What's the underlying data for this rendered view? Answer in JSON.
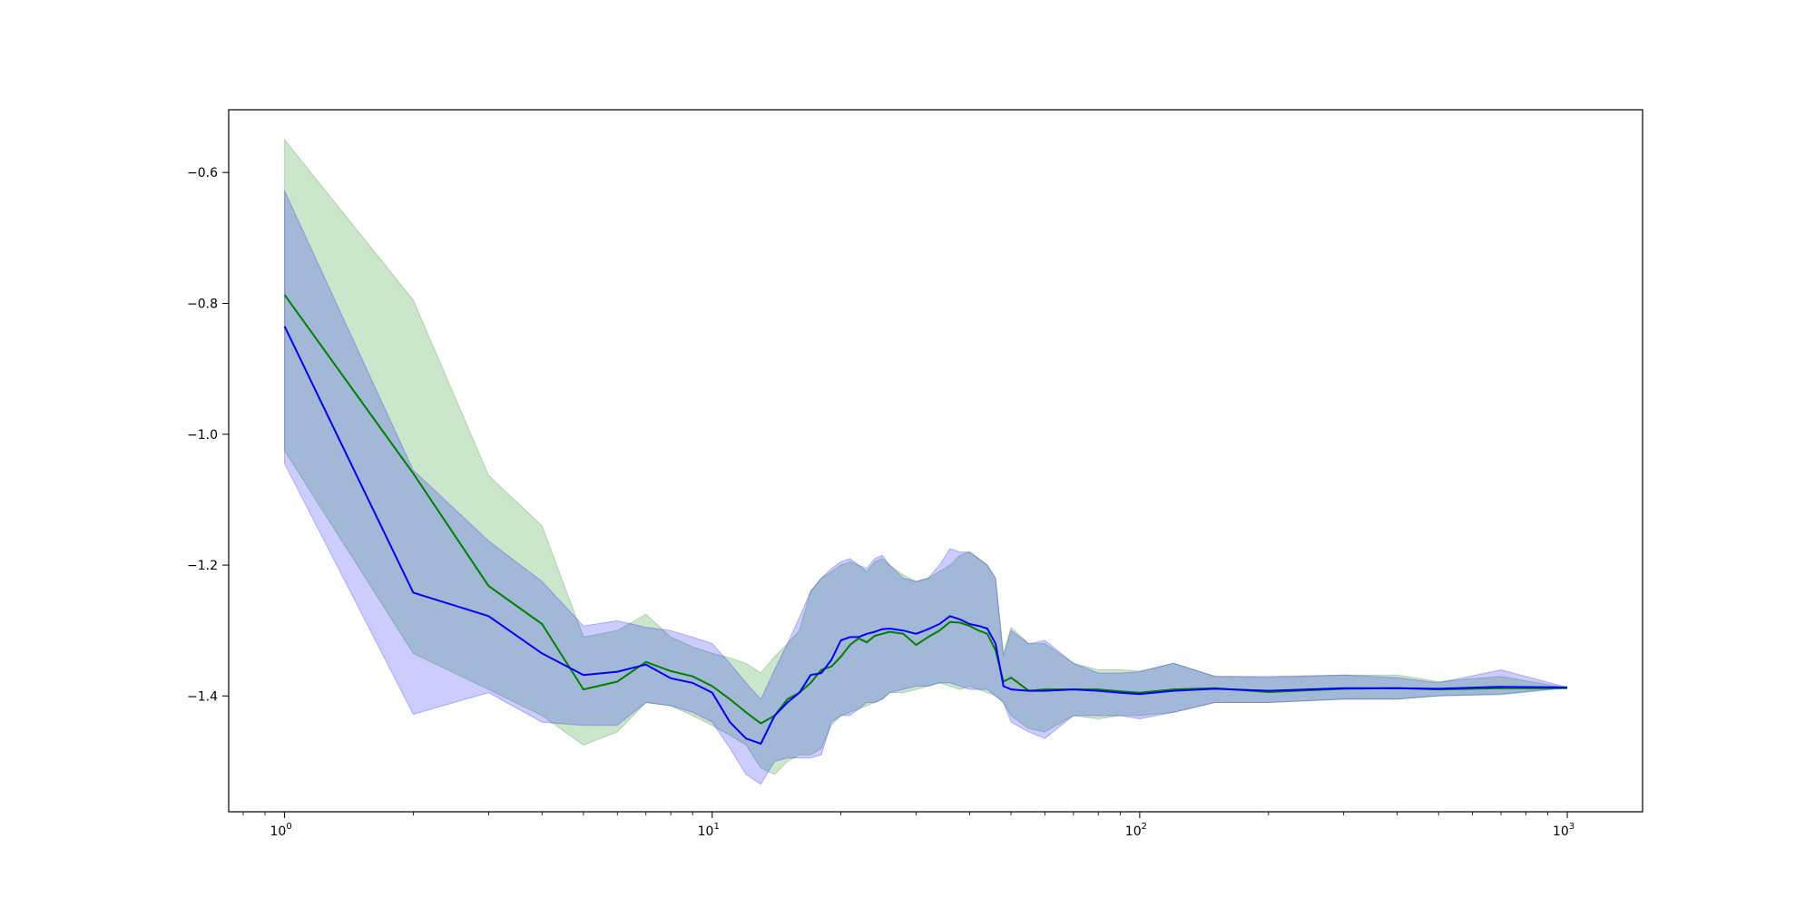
{
  "chart_data": {
    "type": "line",
    "title": "",
    "xlabel": "",
    "ylabel": "",
    "x_scale": "log",
    "xlim": [
      0.74,
      1500
    ],
    "ylim": [
      -1.577,
      -0.504
    ],
    "legend": "none",
    "grid": false,
    "x_ticks": [
      {
        "value": 1,
        "base": "10",
        "exp": "0"
      },
      {
        "value": 10,
        "base": "10",
        "exp": "1"
      },
      {
        "value": 100,
        "base": "10",
        "exp": "2"
      },
      {
        "value": 1000,
        "base": "10",
        "exp": "3"
      }
    ],
    "y_ticks": [
      {
        "value": -0.6,
        "label": "−0.6"
      },
      {
        "value": -0.8,
        "label": "−0.8"
      },
      {
        "value": -1.0,
        "label": "−1.0"
      },
      {
        "value": -1.2,
        "label": "−1.2"
      },
      {
        "value": -1.4,
        "label": "−1.4"
      }
    ],
    "series": [
      {
        "color": "#008000",
        "band_color": "#008000",
        "band_opacity": 0.2,
        "x": [
          1,
          2,
          3,
          4,
          5,
          6,
          7,
          8,
          9,
          10,
          11,
          12,
          13,
          14,
          15,
          16,
          17,
          18,
          19,
          20,
          21,
          22,
          23,
          24,
          25,
          26,
          28,
          30,
          32,
          34,
          36,
          38,
          40,
          42,
          44,
          46,
          48,
          50,
          55,
          60,
          70,
          80,
          90,
          100,
          120,
          150,
          200,
          300,
          400,
          500,
          700,
          1000
        ],
        "y": [
          -0.787,
          -1.06,
          -1.232,
          -1.29,
          -1.39,
          -1.378,
          -1.348,
          -1.362,
          -1.37,
          -1.385,
          -1.405,
          -1.425,
          -1.442,
          -1.43,
          -1.405,
          -1.395,
          -1.38,
          -1.36,
          -1.355,
          -1.34,
          -1.322,
          -1.312,
          -1.318,
          -1.308,
          -1.305,
          -1.302,
          -1.305,
          -1.322,
          -1.31,
          -1.3,
          -1.287,
          -1.288,
          -1.293,
          -1.3,
          -1.305,
          -1.33,
          -1.378,
          -1.372,
          -1.392,
          -1.39,
          -1.39,
          -1.39,
          -1.393,
          -1.395,
          -1.39,
          -1.388,
          -1.394,
          -1.389,
          -1.388,
          -1.39,
          -1.388,
          -1.388
        ],
        "upper": [
          -0.55,
          -0.795,
          -1.063,
          -1.14,
          -1.31,
          -1.3,
          -1.275,
          -1.31,
          -1.325,
          -1.335,
          -1.342,
          -1.35,
          -1.365,
          -1.34,
          -1.32,
          -1.3,
          -1.24,
          -1.22,
          -1.21,
          -1.2,
          -1.195,
          -1.2,
          -1.21,
          -1.195,
          -1.19,
          -1.2,
          -1.215,
          -1.225,
          -1.22,
          -1.21,
          -1.2,
          -1.185,
          -1.18,
          -1.19,
          -1.2,
          -1.22,
          -1.335,
          -1.295,
          -1.32,
          -1.32,
          -1.35,
          -1.36,
          -1.36,
          -1.362,
          -1.35,
          -1.37,
          -1.372,
          -1.368,
          -1.368,
          -1.378,
          -1.37,
          -1.388
        ],
        "lower": [
          -1.025,
          -1.335,
          -1.39,
          -1.43,
          -1.475,
          -1.455,
          -1.41,
          -1.415,
          -1.43,
          -1.445,
          -1.46,
          -1.475,
          -1.51,
          -1.52,
          -1.5,
          -1.49,
          -1.49,
          -1.48,
          -1.445,
          -1.43,
          -1.425,
          -1.42,
          -1.415,
          -1.41,
          -1.405,
          -1.395,
          -1.395,
          -1.39,
          -1.385,
          -1.38,
          -1.385,
          -1.39,
          -1.385,
          -1.39,
          -1.395,
          -1.4,
          -1.41,
          -1.43,
          -1.45,
          -1.455,
          -1.43,
          -1.435,
          -1.43,
          -1.43,
          -1.425,
          -1.41,
          -1.41,
          -1.405,
          -1.405,
          -1.4,
          -1.398,
          -1.388
        ]
      },
      {
        "color": "#0000ff",
        "band_color": "#0000ff",
        "band_opacity": 0.2,
        "x": [
          1,
          2,
          3,
          4,
          5,
          6,
          7,
          8,
          9,
          10,
          11,
          12,
          13,
          14,
          15,
          16,
          17,
          18,
          19,
          20,
          21,
          22,
          23,
          24,
          25,
          26,
          28,
          30,
          32,
          34,
          36,
          38,
          40,
          42,
          44,
          46,
          48,
          50,
          55,
          60,
          70,
          80,
          90,
          100,
          120,
          150,
          200,
          300,
          400,
          500,
          700,
          1000
        ],
        "y": [
          -0.835,
          -1.242,
          -1.278,
          -1.335,
          -1.368,
          -1.363,
          -1.352,
          -1.373,
          -1.38,
          -1.395,
          -1.44,
          -1.465,
          -1.473,
          -1.43,
          -1.41,
          -1.395,
          -1.368,
          -1.365,
          -1.345,
          -1.315,
          -1.31,
          -1.31,
          -1.305,
          -1.302,
          -1.298,
          -1.297,
          -1.3,
          -1.305,
          -1.298,
          -1.29,
          -1.278,
          -1.283,
          -1.29,
          -1.293,
          -1.297,
          -1.32,
          -1.385,
          -1.39,
          -1.392,
          -1.392,
          -1.39,
          -1.392,
          -1.395,
          -1.397,
          -1.392,
          -1.389,
          -1.392,
          -1.388,
          -1.388,
          -1.389,
          -1.386,
          -1.387
        ],
        "upper": [
          -0.628,
          -1.055,
          -1.163,
          -1.225,
          -1.293,
          -1.285,
          -1.295,
          -1.3,
          -1.31,
          -1.32,
          -1.35,
          -1.38,
          -1.405,
          -1.36,
          -1.32,
          -1.28,
          -1.24,
          -1.22,
          -1.205,
          -1.195,
          -1.19,
          -1.2,
          -1.205,
          -1.19,
          -1.185,
          -1.2,
          -1.22,
          -1.225,
          -1.22,
          -1.2,
          -1.175,
          -1.18,
          -1.18,
          -1.19,
          -1.2,
          -1.22,
          -1.34,
          -1.3,
          -1.32,
          -1.315,
          -1.35,
          -1.365,
          -1.365,
          -1.363,
          -1.35,
          -1.37,
          -1.37,
          -1.368,
          -1.372,
          -1.38,
          -1.36,
          -1.387
        ],
        "lower": [
          -1.045,
          -1.428,
          -1.395,
          -1.44,
          -1.445,
          -1.445,
          -1.41,
          -1.415,
          -1.425,
          -1.44,
          -1.48,
          -1.52,
          -1.535,
          -1.5,
          -1.495,
          -1.495,
          -1.495,
          -1.49,
          -1.44,
          -1.43,
          -1.43,
          -1.42,
          -1.41,
          -1.41,
          -1.405,
          -1.395,
          -1.39,
          -1.385,
          -1.385,
          -1.38,
          -1.38,
          -1.385,
          -1.39,
          -1.39,
          -1.39,
          -1.4,
          -1.41,
          -1.44,
          -1.455,
          -1.465,
          -1.43,
          -1.43,
          -1.43,
          -1.435,
          -1.425,
          -1.41,
          -1.41,
          -1.405,
          -1.405,
          -1.4,
          -1.397,
          -1.387
        ]
      }
    ]
  }
}
